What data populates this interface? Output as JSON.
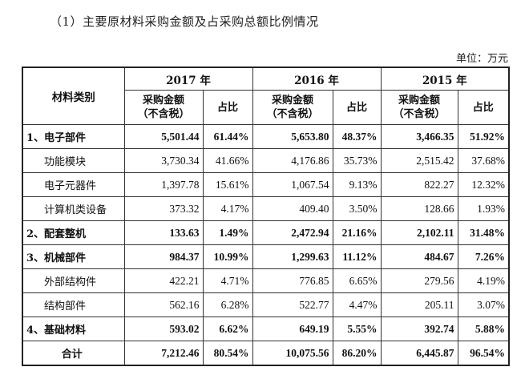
{
  "caption": "（1）主要原材料采购金额及占采购总额比例情况",
  "unit": "单位：万元",
  "header": {
    "category": "材料类别",
    "years": [
      "2017 年",
      "2016 年",
      "2015 年"
    ],
    "amount_line1": "采购金额",
    "amount_line2": "（不含税）",
    "ratio": "占比"
  },
  "rows": [
    {
      "name": "1、电子部件",
      "bold": true,
      "v": [
        "5,501.44",
        "61.44%",
        "5,653.80",
        "48.37%",
        "3,466.35",
        "51.92%"
      ]
    },
    {
      "name": "功能模块",
      "bold": false,
      "v": [
        "3,730.34",
        "41.66%",
        "4,176.86",
        "35.73%",
        "2,515.42",
        "37.68%"
      ]
    },
    {
      "name": "电子元器件",
      "bold": false,
      "v": [
        "1,397.78",
        "15.61%",
        "1,067.54",
        "9.13%",
        "822.27",
        "12.32%"
      ]
    },
    {
      "name": "计算机类设备",
      "bold": false,
      "v": [
        "373.32",
        "4.17%",
        "409.40",
        "3.50%",
        "128.66",
        "1.93%"
      ]
    },
    {
      "name": "2、配套整机",
      "bold": true,
      "v": [
        "133.63",
        "1.49%",
        "2,472.94",
        "21.16%",
        "2,102.11",
        "31.48%"
      ]
    },
    {
      "name": "3、机械部件",
      "bold": true,
      "v": [
        "984.37",
        "10.99%",
        "1,299.63",
        "11.12%",
        "484.67",
        "7.26%"
      ]
    },
    {
      "name": "外部结构件",
      "bold": false,
      "v": [
        "422.21",
        "4.71%",
        "776.85",
        "6.65%",
        "279.56",
        "4.19%"
      ]
    },
    {
      "name": "结构部件",
      "bold": false,
      "v": [
        "562.16",
        "6.28%",
        "522.77",
        "4.47%",
        "205.11",
        "3.07%"
      ]
    },
    {
      "name": "4、基础材料",
      "bold": true,
      "v": [
        "593.02",
        "6.62%",
        "649.19",
        "5.55%",
        "392.74",
        "5.88%"
      ]
    },
    {
      "name": "合计",
      "bold": true,
      "total": true,
      "v": [
        "7,212.46",
        "80.54%",
        "10,075.56",
        "86.20%",
        "6,445.87",
        "96.54%"
      ]
    }
  ]
}
